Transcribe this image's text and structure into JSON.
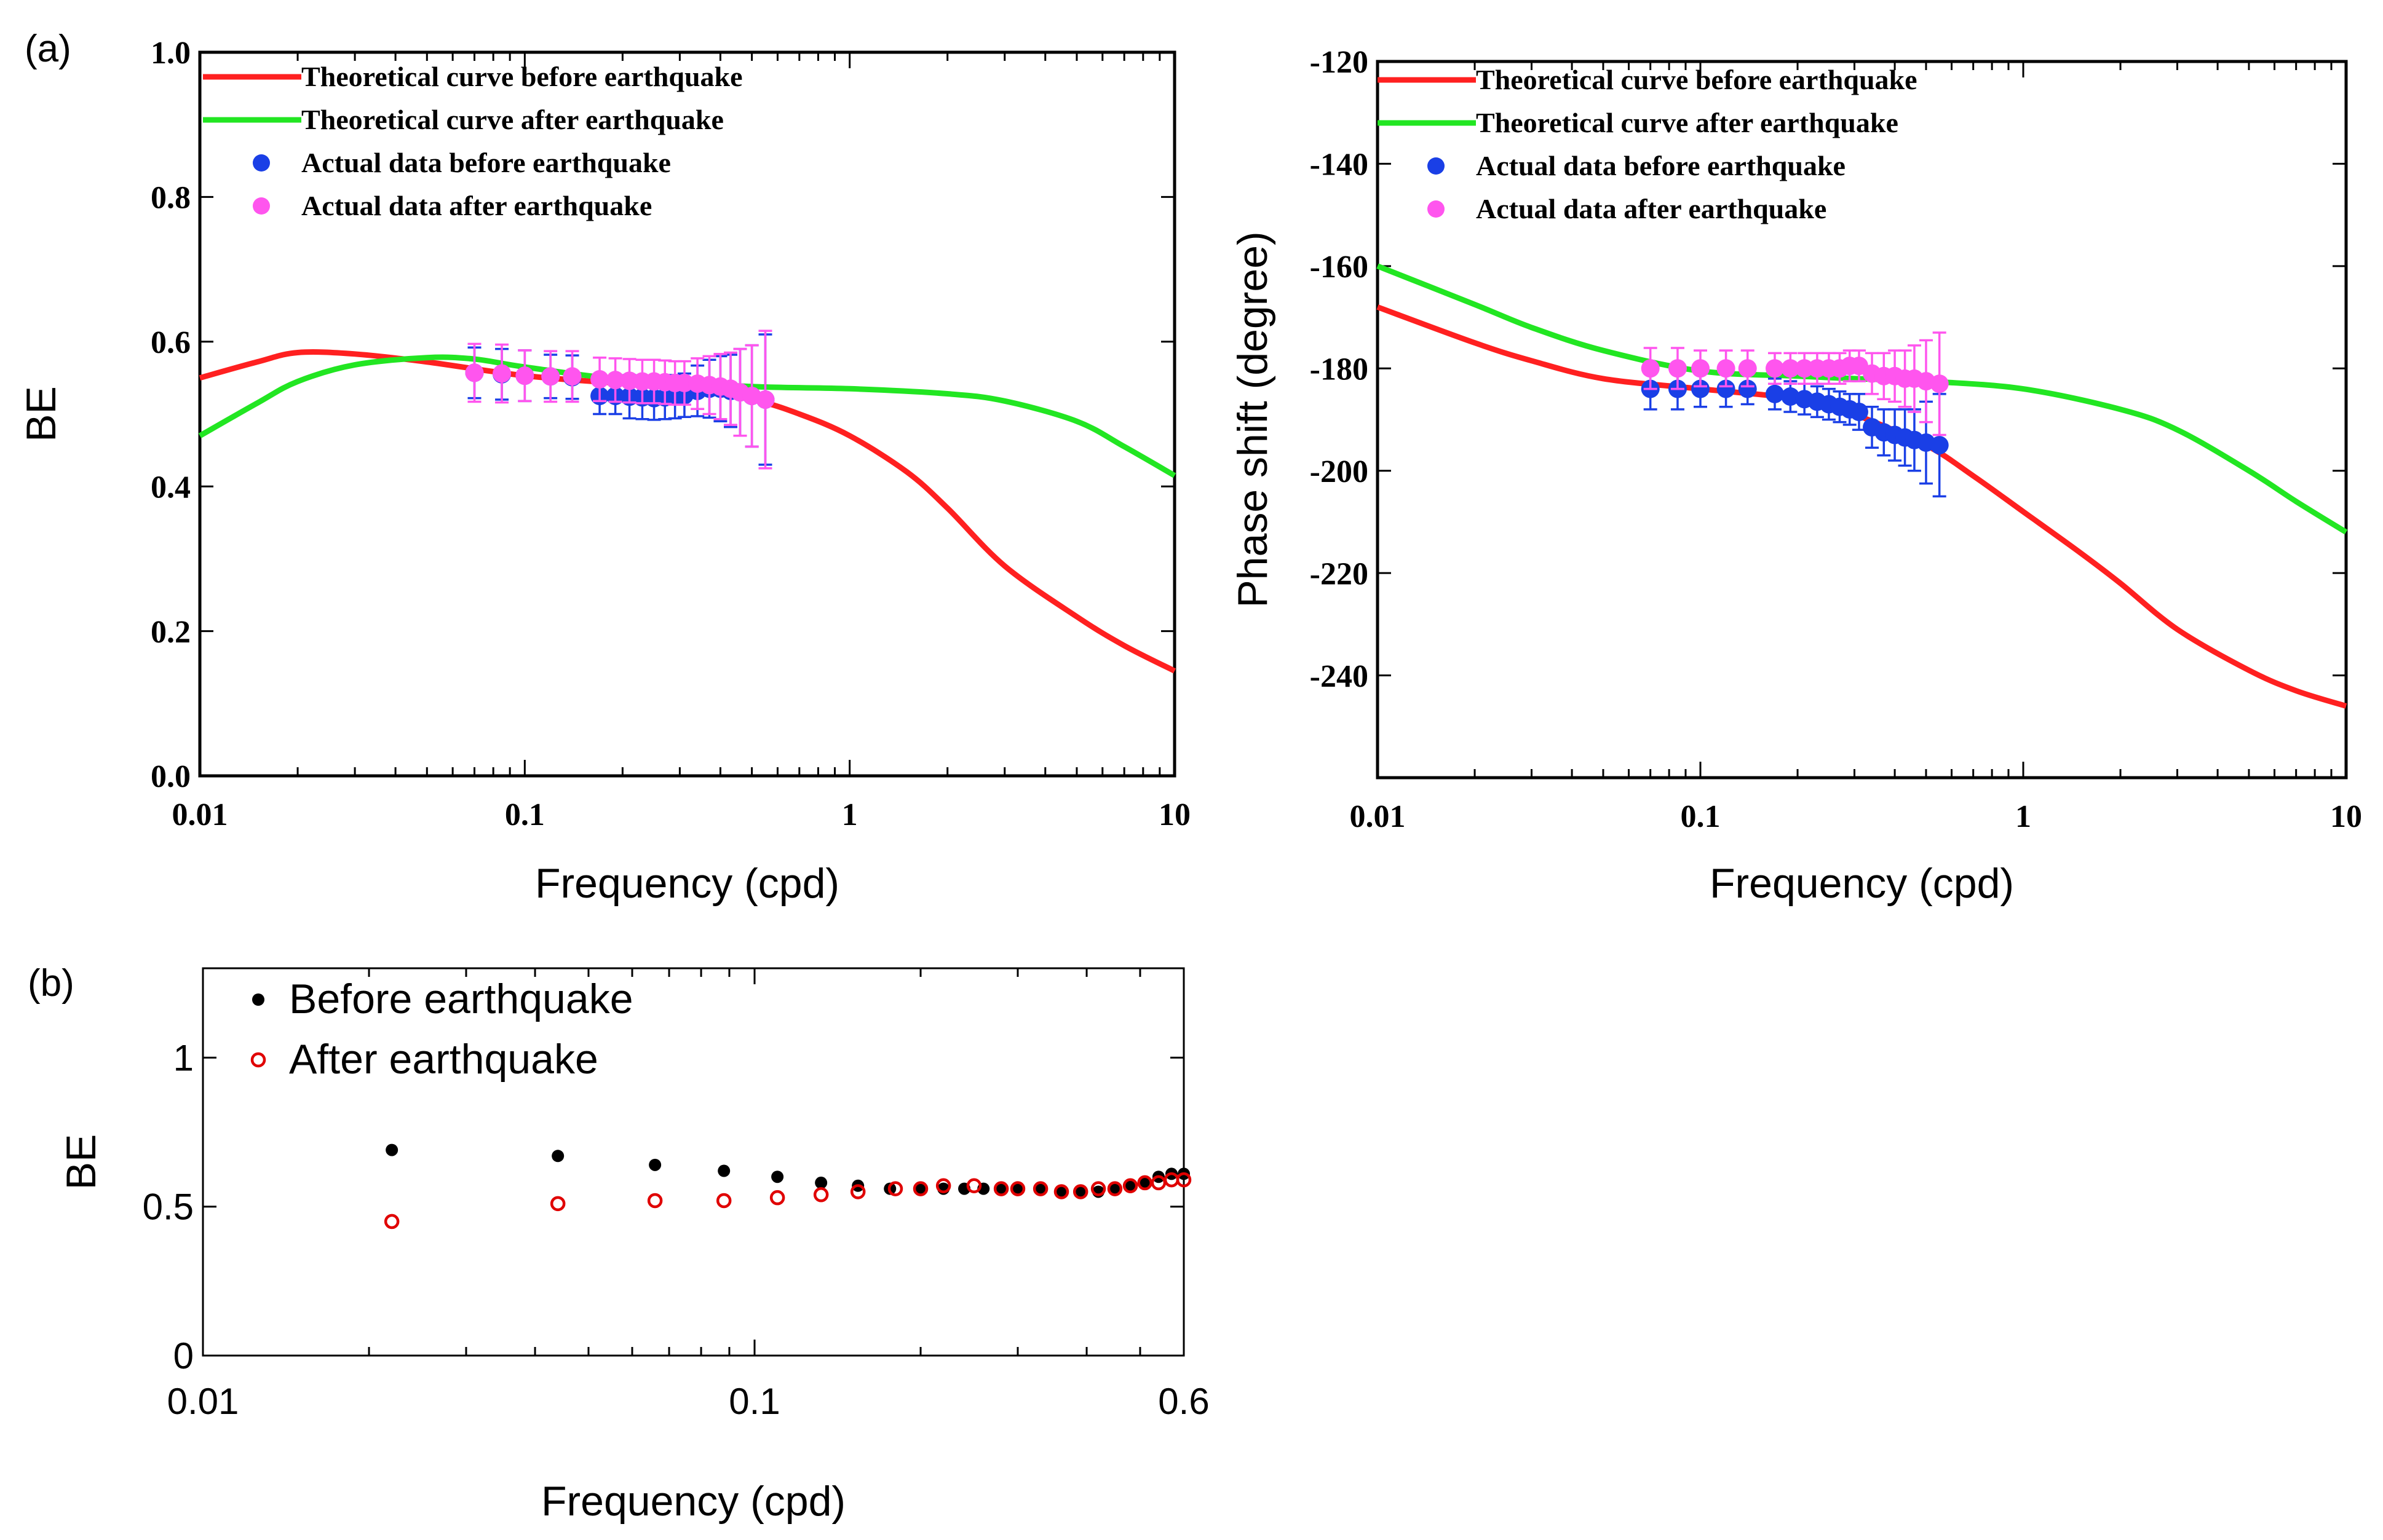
{
  "panel_labels": {
    "a": "(a)",
    "b": "(b)"
  },
  "colors": {
    "theory_before": "#ff2020",
    "theory_after": "#22e622",
    "actual_before": "#1a3fe6",
    "actual_after": "#ff55ee",
    "b_before": "#000000",
    "b_after": "#e00000",
    "b_overlap": "#1a3fe6"
  },
  "chart_data": [
    {
      "id": "a-left",
      "type": "line",
      "xscale": "log",
      "xlim": [
        0.01,
        10
      ],
      "ylim": [
        0.0,
        1.0
      ],
      "xticks": [
        "0.01",
        "0.1",
        "1",
        "10"
      ],
      "yticks": [
        "0.0",
        "0.2",
        "0.4",
        "0.6",
        "0.8",
        "1.0"
      ],
      "xlabel": "Frequency (cpd)",
      "ylabel": "BE",
      "legend_position": "top-left",
      "legend": [
        "Theoretical curve before earthquake",
        "Theoretical curve after earthquake",
        "Actual data before earthquake",
        "Actual data after earthquake"
      ],
      "series": [
        {
          "name": "Theoretical curve before earthquake",
          "kind": "line",
          "x": [
            0.01,
            0.015,
            0.02,
            0.03,
            0.05,
            0.1,
            0.2,
            0.3,
            0.5,
            0.7,
            1,
            1.5,
            2,
            3,
            5,
            7,
            10
          ],
          "y": [
            0.55,
            0.572,
            0.585,
            0.583,
            0.572,
            0.553,
            0.542,
            0.535,
            0.52,
            0.5,
            0.47,
            0.42,
            0.37,
            0.29,
            0.22,
            0.18,
            0.145
          ]
        },
        {
          "name": "Theoretical curve after earthquake",
          "kind": "line",
          "x": [
            0.01,
            0.015,
            0.02,
            0.03,
            0.05,
            0.07,
            0.1,
            0.2,
            0.5,
            1,
            2,
            3,
            5,
            7,
            10
          ],
          "y": [
            0.47,
            0.515,
            0.545,
            0.568,
            0.578,
            0.576,
            0.565,
            0.548,
            0.538,
            0.535,
            0.528,
            0.518,
            0.49,
            0.455,
            0.415
          ]
        },
        {
          "name": "Actual data before earthquake",
          "kind": "scatter",
          "x": [
            0.07,
            0.085,
            0.1,
            0.12,
            0.14,
            0.17,
            0.19,
            0.21,
            0.23,
            0.25,
            0.27,
            0.29,
            0.31,
            0.34,
            0.37,
            0.4,
            0.43,
            0.46,
            0.5,
            0.55
          ],
          "y": [
            0.557,
            0.555,
            0.553,
            0.552,
            0.551,
            0.525,
            0.525,
            0.524,
            0.523,
            0.522,
            0.523,
            0.524,
            0.526,
            0.532,
            0.535,
            0.535,
            0.532,
            0.53,
            0.525,
            0.52
          ],
          "err": [
            0.035,
            0.035,
            0.035,
            0.03,
            0.03,
            0.025,
            0.025,
            0.03,
            0.03,
            0.03,
            0.03,
            0.03,
            0.03,
            0.035,
            0.04,
            0.045,
            0.05,
            0.06,
            0.07,
            0.09
          ]
        },
        {
          "name": "Actual data after earthquake",
          "kind": "scatter",
          "x": [
            0.07,
            0.085,
            0.1,
            0.12,
            0.14,
            0.17,
            0.19,
            0.21,
            0.23,
            0.25,
            0.27,
            0.29,
            0.31,
            0.34,
            0.37,
            0.4,
            0.43,
            0.46,
            0.5,
            0.55
          ],
          "y": [
            0.557,
            0.556,
            0.553,
            0.552,
            0.552,
            0.548,
            0.547,
            0.546,
            0.545,
            0.545,
            0.544,
            0.543,
            0.543,
            0.542,
            0.54,
            0.538,
            0.535,
            0.53,
            0.525,
            0.52
          ],
          "err": [
            0.04,
            0.04,
            0.035,
            0.035,
            0.035,
            0.03,
            0.03,
            0.03,
            0.03,
            0.03,
            0.03,
            0.03,
            0.03,
            0.035,
            0.04,
            0.045,
            0.05,
            0.06,
            0.07,
            0.095
          ]
        }
      ]
    },
    {
      "id": "a-right",
      "type": "line",
      "xscale": "log",
      "xlim": [
        0.01,
        10
      ],
      "ylim": [
        -260,
        -120
      ],
      "xticks": [
        "0.01",
        "0.1",
        "1",
        "10"
      ],
      "yticks": [
        "-120",
        "-140",
        "-160",
        "-180",
        "-200",
        "-220",
        "-240"
      ],
      "xlabel": "Frequency (cpd)",
      "ylabel": "Phase shift (degree)",
      "legend_position": "top-left",
      "legend": [
        "Theoretical curve before earthquake",
        "Theoretical curve after earthquake",
        "Actual data before earthquake",
        "Actual data after earthquake"
      ],
      "series": [
        {
          "name": "Theoretical curve before earthquake",
          "kind": "line",
          "x": [
            0.01,
            0.02,
            0.03,
            0.05,
            0.1,
            0.2,
            0.3,
            0.5,
            0.7,
            1,
            1.5,
            2,
            3,
            5,
            7,
            10
          ],
          "y": [
            -168,
            -175,
            -178.5,
            -182,
            -184,
            -186,
            -189,
            -195,
            -201,
            -208,
            -216,
            -222,
            -231,
            -239,
            -243,
            -246
          ]
        },
        {
          "name": "Theoretical curve after earthquake",
          "kind": "line",
          "x": [
            0.01,
            0.02,
            0.03,
            0.05,
            0.1,
            0.2,
            0.3,
            0.5,
            1,
            2,
            3,
            5,
            7,
            10
          ],
          "y": [
            -160,
            -167.5,
            -172,
            -176.5,
            -180.5,
            -181.5,
            -182,
            -182.5,
            -184,
            -188,
            -192,
            -200,
            -206,
            -212
          ]
        },
        {
          "name": "Actual data before earthquake",
          "kind": "scatter",
          "x": [
            0.07,
            0.085,
            0.1,
            0.12,
            0.14,
            0.17,
            0.19,
            0.21,
            0.23,
            0.25,
            0.27,
            0.29,
            0.31,
            0.34,
            0.37,
            0.4,
            0.43,
            0.46,
            0.5,
            0.55
          ],
          "y": [
            -184,
            -184,
            -184,
            -184,
            -184,
            -185,
            -185.5,
            -186,
            -186.5,
            -187,
            -187.5,
            -188,
            -188.5,
            -191.5,
            -192.5,
            -193,
            -193.5,
            -194,
            -194.5,
            -195
          ],
          "err": [
            4,
            4,
            3.5,
            3.5,
            3,
            3,
            3,
            3,
            3,
            3,
            3,
            3,
            3.5,
            4,
            4.5,
            5,
            5.5,
            6,
            8,
            10
          ]
        },
        {
          "name": "Actual data after earthquake",
          "kind": "scatter",
          "x": [
            0.07,
            0.085,
            0.1,
            0.12,
            0.14,
            0.17,
            0.19,
            0.21,
            0.23,
            0.25,
            0.27,
            0.29,
            0.31,
            0.34,
            0.37,
            0.4,
            0.43,
            0.46,
            0.5,
            0.55
          ],
          "y": [
            -180,
            -180,
            -180,
            -180,
            -180,
            -180,
            -180,
            -180,
            -180,
            -180,
            -180,
            -179.5,
            -179.5,
            -181,
            -181.5,
            -181.5,
            -182,
            -182,
            -182.5,
            -183
          ],
          "err": [
            4,
            4,
            3.5,
            3.5,
            3.5,
            3,
            3,
            3,
            3,
            3,
            3,
            3,
            3,
            4,
            4.5,
            5,
            5.5,
            6.5,
            8,
            10
          ]
        }
      ]
    },
    {
      "id": "b",
      "type": "scatter",
      "xscale": "log",
      "xlim": [
        0.01,
        0.6
      ],
      "ylim": [
        0,
        1.3
      ],
      "xticks": [
        "0.01",
        "0.1",
        "0.6"
      ],
      "yticks": [
        "0",
        "0.5",
        "1"
      ],
      "xlabel": "Frequency (cpd)",
      "ylabel": "BE",
      "legend_position": "top-left",
      "legend": [
        "Before earthquake",
        "After earthquake"
      ],
      "series": [
        {
          "name": "Before earthquake",
          "kind": "scatter-filled",
          "x": [
            0.022,
            0.044,
            0.066,
            0.088,
            0.11,
            0.132,
            0.154,
            0.176,
            0.2,
            0.22,
            0.24,
            0.26,
            0.28,
            0.3,
            0.33,
            0.36,
            0.39,
            0.42,
            0.45,
            0.48,
            0.51,
            0.54,
            0.57,
            0.6
          ],
          "y": [
            0.69,
            0.67,
            0.64,
            0.62,
            0.6,
            0.58,
            0.57,
            0.56,
            0.56,
            0.56,
            0.56,
            0.56,
            0.56,
            0.56,
            0.56,
            0.55,
            0.55,
            0.55,
            0.56,
            0.57,
            0.58,
            0.6,
            0.61,
            0.61
          ]
        },
        {
          "name": "After earthquake",
          "kind": "scatter-open",
          "x": [
            0.022,
            0.044,
            0.066,
            0.088,
            0.11,
            0.132,
            0.154,
            0.18,
            0.2,
            0.22,
            0.25,
            0.28,
            0.3,
            0.33,
            0.36,
            0.39,
            0.42,
            0.45,
            0.48,
            0.51,
            0.54,
            0.57,
            0.6
          ],
          "y": [
            0.45,
            0.51,
            0.52,
            0.52,
            0.53,
            0.54,
            0.55,
            0.56,
            0.56,
            0.57,
            0.57,
            0.56,
            0.56,
            0.56,
            0.55,
            0.55,
            0.56,
            0.56,
            0.57,
            0.58,
            0.58,
            0.59,
            0.59
          ]
        }
      ]
    }
  ]
}
